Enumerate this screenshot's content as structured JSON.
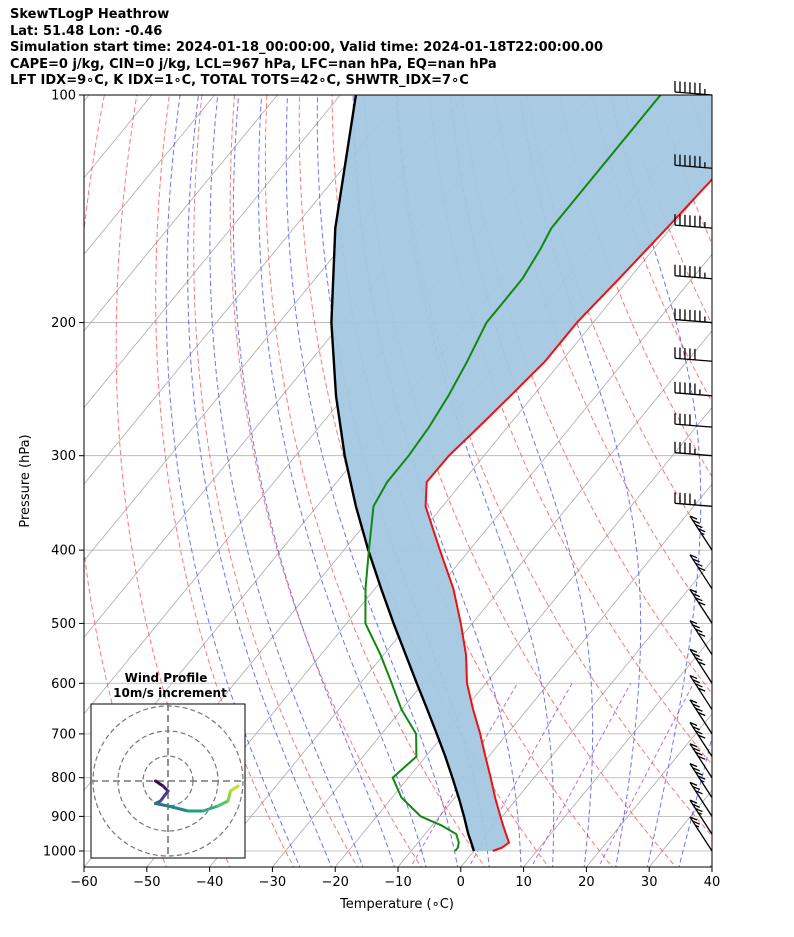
{
  "header": {
    "line1": "SkewTLogP Heathrow",
    "line2": "Lat: 51.48   Lon: -0.46",
    "line3": "Simulation start time: 2024-01-18_00:00:00, Valid time: 2024-01-18T22:00:00.00",
    "line4": "CAPE=0 j/kg, CIN=0 j/kg, LCL=967 hPa, LFC=nan hPa, EQ=nan hPa",
    "line5": "LFT IDX=9∘C, K IDX=1∘C, TOTAL TOTS=42∘C, SHWTR_IDX=7∘C"
  },
  "axes": {
    "xlabel": "Temperature (∘C)",
    "ylabel": "Pressure (hPa)"
  },
  "hodograph": {
    "title1": "Wind Profile",
    "title2": "10m/s increment"
  },
  "colors": {
    "temperature": "#ee1111",
    "dewpoint": "#118811",
    "parcel": "#000000",
    "shade": "#a3c7e0",
    "dry_adiabat": "#ff5555",
    "moist_adiabat": "#4455ee",
    "mixing_ratio": "#9932cc",
    "isotherm": "#aaaaaa"
  },
  "chart_data": {
    "type": "line",
    "title": "SkewTLogP Heathrow",
    "xlabel": "Temperature (∘C)",
    "ylabel": "Pressure (hPa)",
    "xlim": [
      -60,
      40
    ],
    "ylim": [
      1050,
      100
    ],
    "y_scale": "log",
    "x_ticks": [
      -60,
      -50,
      -40,
      -30,
      -20,
      -10,
      0,
      10,
      20,
      30,
      40
    ],
    "y_ticks": [
      1000,
      900,
      800,
      700,
      600,
      500,
      400,
      300,
      200,
      100
    ],
    "grid": true,
    "series": [
      {
        "key": "temperature",
        "pressure": [
          1000,
          990,
          975,
          950,
          925,
          900,
          850,
          800,
          750,
          700,
          650,
          600,
          550,
          500,
          450,
          400,
          350,
          325,
          300,
          275,
          250,
          225,
          200,
          175,
          150,
          125,
          100
        ],
        "temp": [
          3,
          4,
          4.5,
          2.9,
          1.3,
          -0.3,
          -3.6,
          -6.9,
          -10.5,
          -14.3,
          -18.6,
          -23,
          -26.9,
          -31.8,
          -37.5,
          -44.7,
          -52.7,
          -55.7,
          -55.6,
          -54.6,
          -53.6,
          -52.6,
          -52.6,
          -51.6,
          -50.6,
          -49.6,
          -49.6
        ]
      },
      {
        "key": "dewpoint",
        "pressure": [
          1000,
          990,
          975,
          950,
          925,
          900,
          850,
          800,
          750,
          700,
          650,
          600,
          550,
          500,
          450,
          400,
          350,
          325,
          300,
          275,
          250,
          225,
          200,
          185,
          175,
          160,
          150,
          125,
          100
        ],
        "temp": [
          -3,
          -3,
          -3.5,
          -5,
          -8.5,
          -13,
          -18.5,
          -22.5,
          -21.5,
          -24.5,
          -30,
          -35,
          -40.5,
          -47,
          -51.5,
          -56,
          -61,
          -62,
          -62,
          -62.5,
          -63.5,
          -65,
          -67,
          -67,
          -67,
          -68,
          -69,
          -69,
          -69
        ]
      },
      {
        "key": "parcel",
        "pressure": [
          1000,
          975,
          967,
          950,
          900,
          850,
          800,
          750,
          700,
          650,
          600,
          550,
          500,
          450,
          400,
          350,
          300,
          250,
          200,
          150,
          100
        ],
        "temp": [
          0,
          -1.5,
          -2,
          -3.1,
          -6.1,
          -9.4,
          -13,
          -16.9,
          -21.2,
          -25.9,
          -31,
          -36.5,
          -42.5,
          -49,
          -56.1,
          -63.8,
          -72.2,
          -81.4,
          -91.7,
          -103.4,
          -117.5
        ]
      }
    ],
    "wind_barbs": {
      "pressure": [
        1000,
        950,
        900,
        850,
        800,
        750,
        700,
        650,
        600,
        550,
        500,
        450,
        400,
        350,
        300,
        275,
        250,
        225,
        200,
        175,
        150,
        125,
        100
      ],
      "speed_kt": [
        15,
        25,
        30,
        35,
        40,
        40,
        40,
        40,
        40,
        40,
        40,
        40,
        35,
        35,
        35,
        40,
        45,
        50,
        55,
        55,
        55,
        55,
        55
      ]
    },
    "hodograph": {
      "ring_step_ms": 10,
      "points_ms": [
        [
          -5,
          0
        ],
        [
          -2,
          -2
        ],
        [
          0,
          -4
        ],
        [
          -3,
          -8
        ],
        [
          -5,
          -9
        ],
        [
          0,
          -10
        ],
        [
          8,
          -12
        ],
        [
          14,
          -12
        ],
        [
          20,
          -10
        ],
        [
          24,
          -8
        ],
        [
          25,
          -4
        ],
        [
          28,
          -2
        ]
      ]
    }
  }
}
